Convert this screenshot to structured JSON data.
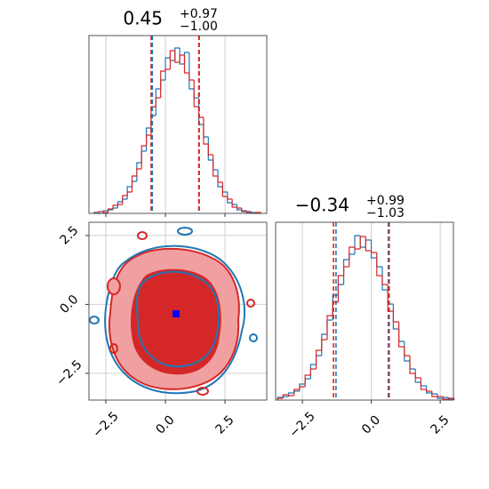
{
  "chart_data": [
    {
      "type": "histogram",
      "title": "0.45",
      "title_sup": "+0.97",
      "title_sub": "−1.00",
      "bins": [
        -3.0,
        -2.8,
        -2.6,
        -2.4,
        -2.2,
        -2.0,
        -1.8,
        -1.6,
        -1.4,
        -1.2,
        -1.0,
        -0.8,
        -0.6,
        -0.4,
        -0.2,
        0.0,
        0.2,
        0.4,
        0.6,
        0.8,
        1.0,
        1.2,
        1.4,
        1.6,
        1.8,
        2.0,
        2.2,
        2.4,
        2.6,
        2.8,
        3.0,
        3.2,
        3.4,
        3.6,
        3.8,
        4.0
      ],
      "series": [
        {
          "name": "blue",
          "color": "#1f77b4",
          "values": [
            1,
            0,
            3,
            4,
            6,
            13,
            16,
            30,
            36,
            57,
            70,
            96,
            110,
            140,
            150,
            175,
            172,
            186,
            168,
            181,
            140,
            130,
            100,
            86,
            60,
            49,
            30,
            24,
            12,
            10,
            4,
            3,
            1,
            1,
            0
          ],
          "quantiles": [
            -0.55,
            1.42
          ]
        },
        {
          "name": "red",
          "color": "#d62728",
          "values": [
            0,
            2,
            1,
            5,
            9,
            10,
            20,
            24,
            42,
            50,
            76,
            88,
            120,
            130,
            160,
            162,
            183,
            170,
            178,
            158,
            150,
            120,
            108,
            78,
            66,
            42,
            35,
            19,
            16,
            7,
            6,
            2,
            2,
            0,
            1
          ],
          "quantiles": [
            -0.6,
            1.4
          ]
        }
      ],
      "xlim": [
        -3.21,
        4.25
      ],
      "xticks": [
        -2.5,
        0,
        2.5
      ],
      "ylim": [
        0,
        200
      ],
      "grid": true
    },
    {
      "type": "contour",
      "point": {
        "x": 0.45,
        "y": -0.34,
        "color": "#0000ff"
      },
      "xlim": [
        -3.21,
        4.25
      ],
      "ylim": [
        -3.47,
        2.98
      ],
      "xticks": [
        {
          "value": -2.5,
          "label": "−2.5"
        },
        {
          "value": 0,
          "label": "0.0"
        },
        2.5
      ],
      "yticks": [
        {
          "value": -2.5,
          "label": "−2.5"
        },
        {
          "value": 0,
          "label": "0.0"
        },
        2.5
      ],
      "grid": true
    },
    {
      "type": "histogram",
      "title": "−0.34",
      "title_sup": "+0.99",
      "title_sub": "−1.03",
      "bins": [
        -3.4,
        -3.2,
        -3.0,
        -2.8,
        -2.6,
        -2.4,
        -2.2,
        -2.0,
        -1.8,
        -1.6,
        -1.4,
        -1.2,
        -1.0,
        -0.8,
        -0.6,
        -0.4,
        -0.2,
        0.0,
        0.2,
        0.4,
        0.6,
        0.8,
        1.0,
        1.2,
        1.4,
        1.6,
        1.8,
        2.0,
        2.2,
        2.4,
        2.6,
        2.8,
        3.0
      ],
      "series": [
        {
          "name": "blue",
          "color": "#1f77b4",
          "values": [
            3,
            4,
            8,
            10,
            18,
            24,
            40,
            50,
            74,
            90,
            118,
            130,
            158,
            164,
            185,
            172,
            180,
            160,
            150,
            124,
            108,
            80,
            66,
            44,
            35,
            20,
            16,
            8,
            7,
            2,
            3,
            1
          ],
          "quantiles": [
            -1.28,
            0.62
          ]
        },
        {
          "name": "red",
          "color": "#d62728",
          "values": [
            2,
            6,
            5,
            12,
            15,
            28,
            35,
            56,
            68,
            95,
            110,
            140,
            150,
            172,
            170,
            184,
            168,
            166,
            140,
            130,
            100,
            88,
            60,
            50,
            30,
            25,
            12,
            10,
            4,
            4,
            1,
            2
          ],
          "quantiles": [
            -1.37,
            0.65
          ]
        }
      ],
      "xlim": [
        -3.47,
        2.98
      ],
      "xticks": [
        {
          "value": -2.5,
          "label": "−2.5"
        },
        {
          "value": 0,
          "label": "0.0"
        },
        2.5
      ],
      "ylim": [
        0,
        200
      ],
      "grid": true
    }
  ]
}
